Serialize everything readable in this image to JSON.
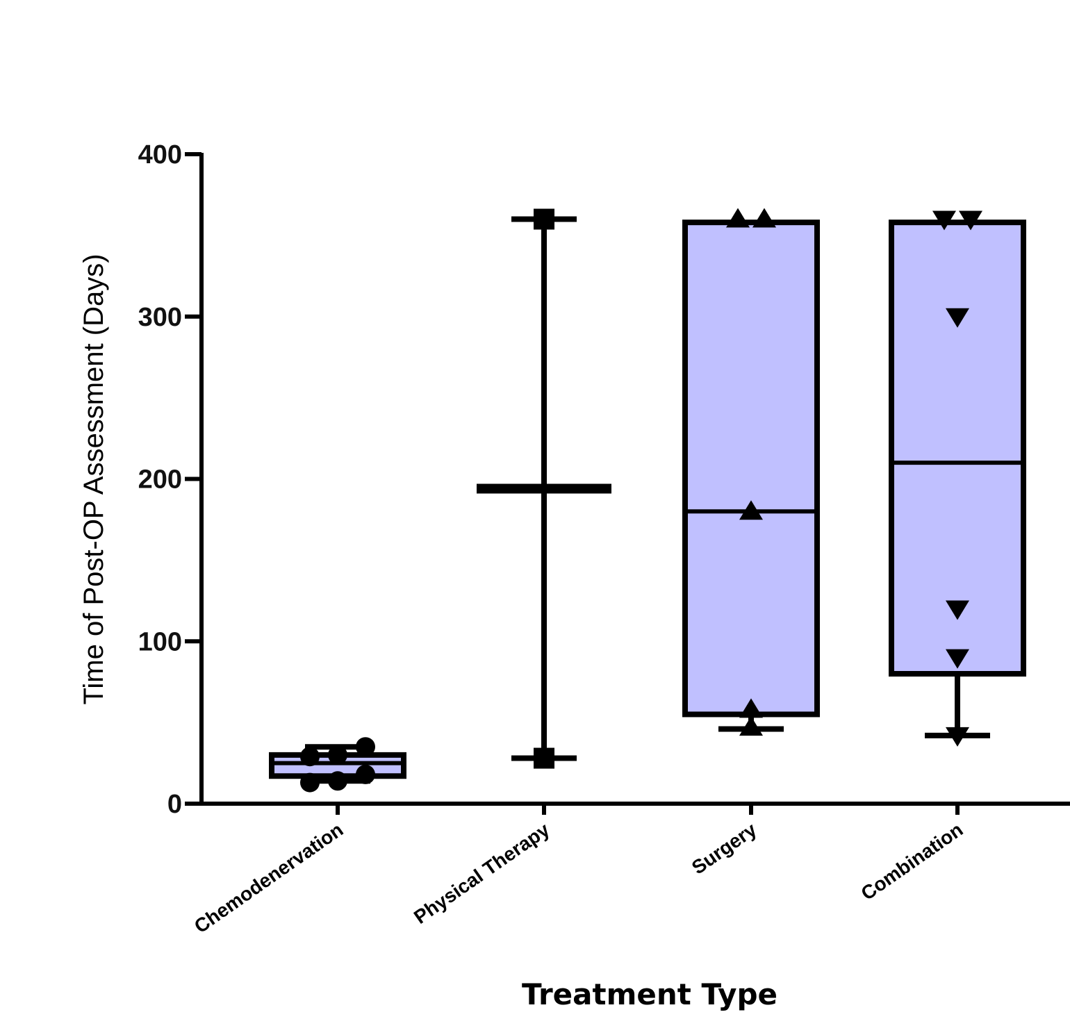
{
  "chart_data": {
    "type": "box",
    "title": "",
    "xlabel": "Treatment Type",
    "ylabel": "Time of Post-OP Assessment (Days)",
    "ylim": [
      0,
      400
    ],
    "yticks": [
      0,
      100,
      200,
      300,
      400
    ],
    "ytick_labels": [
      "0",
      "100",
      "200",
      "300",
      "400"
    ],
    "grid": false,
    "box_fill": "#c0c0ff",
    "stroke": "#000000",
    "categories": [
      "Chemodenervation",
      "Physical Therapy",
      "Surgery",
      "Combination"
    ],
    "groups": [
      {
        "name": "Chemodenervation",
        "marker": "circle",
        "min": 14,
        "q1": 17,
        "median": 25,
        "q3": 30,
        "max": 35,
        "points": [
          30,
          18,
          13,
          29,
          35,
          14
        ]
      },
      {
        "name": "Physical Therapy",
        "marker": "square",
        "min": 28,
        "q1": 194,
        "median": 194,
        "q3": 194,
        "max": 360,
        "points": [
          360,
          28
        ]
      },
      {
        "name": "Surgery",
        "marker": "triangle-up",
        "min": 46,
        "q1": 55,
        "median": 180,
        "q3": 358,
        "max": 358,
        "points": [
          360,
          360,
          180,
          58,
          47
        ]
      },
      {
        "name": "Combination",
        "marker": "triangle-down",
        "min": 42,
        "q1": 80,
        "median": 210,
        "q3": 358,
        "max": 358,
        "points": [
          360,
          360,
          300,
          120,
          90,
          42
        ]
      }
    ]
  }
}
